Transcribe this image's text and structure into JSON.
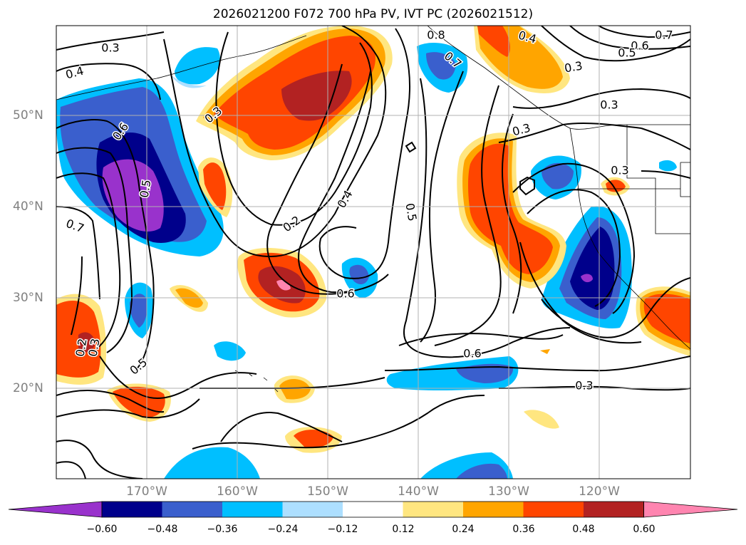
{
  "title": "2026021200 F072 700 hPa PV, IVT PC (2026021512)",
  "lat_labels": [
    "50°N",
    "40°N",
    "30°N",
    "20°N"
  ],
  "lon_labels": [
    "170°W",
    "160°W",
    "150°W",
    "140°W",
    "130°W",
    "120°W"
  ],
  "colorbar": {
    "ticks": [
      "−0.60",
      "−0.48",
      "−0.36",
      "−0.24",
      "−0.12",
      "0.12",
      "0.24",
      "0.36",
      "0.48",
      "0.60"
    ],
    "colors": [
      "#9932CC",
      "#00008B",
      "#3A5FCD",
      "#00BFFF",
      "#ADDFFF",
      "#FFFFFF",
      "#FFE680",
      "#FFA500",
      "#FF4500",
      "#B22222",
      "#FF85B0"
    ]
  },
  "contour_labels": [
    "0.3",
    "0.4",
    "0.6",
    "0.5",
    "0.7",
    "0.3",
    "0.2",
    "0.4",
    "0.5",
    "0.6",
    "0.3",
    "0.4",
    "0.7",
    "0.6",
    "0.5",
    "0.3",
    "0.3",
    "0.6",
    "0.3",
    "0.5",
    "0.3",
    "0.8",
    "0.7",
    "0.2",
    "0.3"
  ]
}
